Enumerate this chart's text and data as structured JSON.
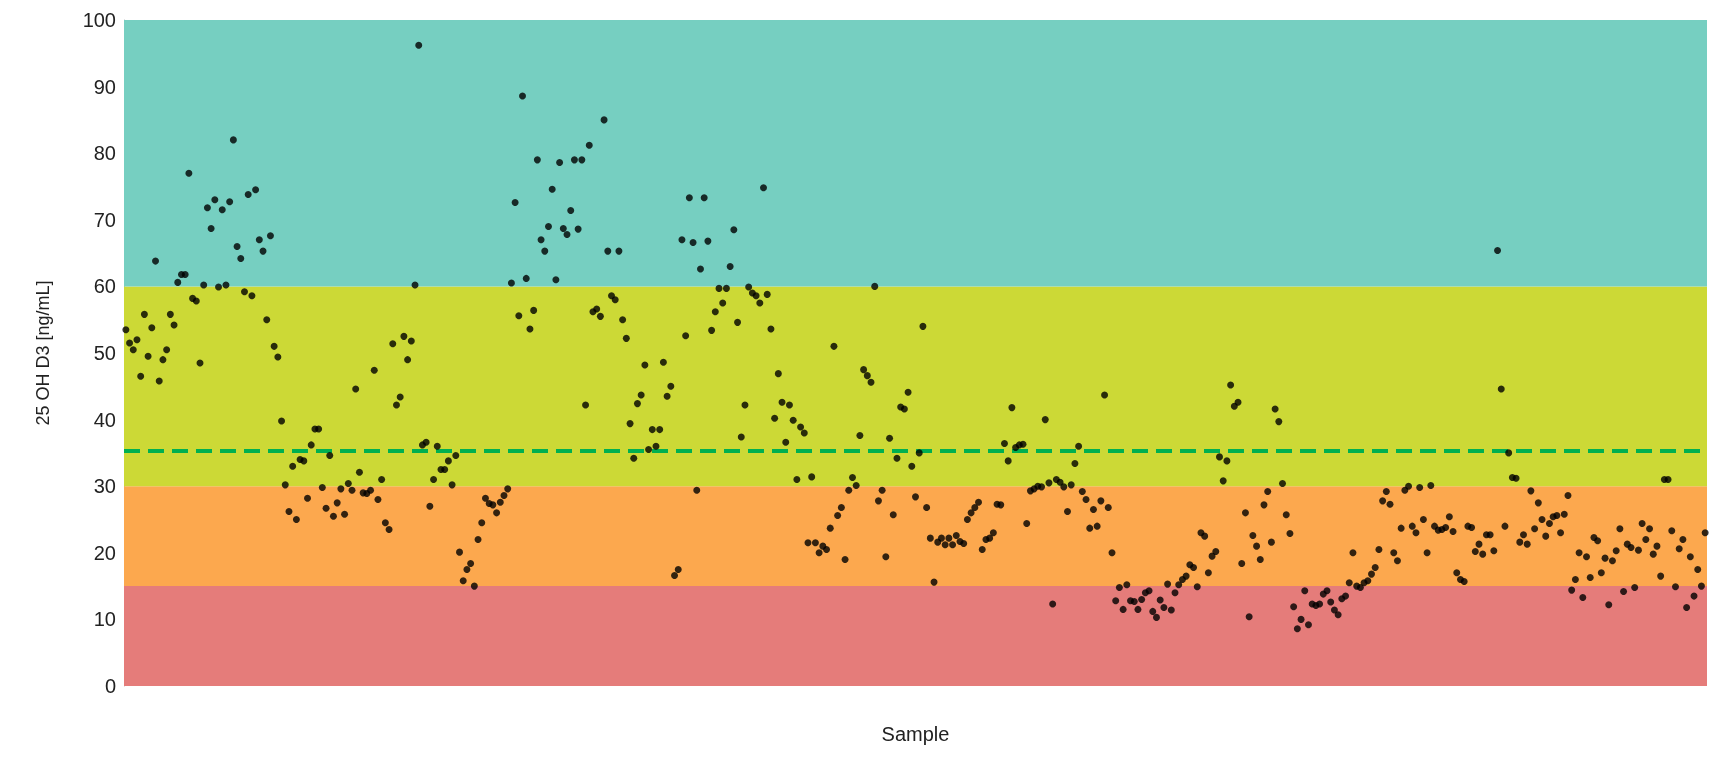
{
  "chart_data": {
    "type": "scatter",
    "xlabel": "Sample",
    "ylabel": "25 OH D3 [ng/mL]",
    "categories": [
      null,
      null,
      null,
      null,
      null,
      null,
      null,
      null,
      null,
      null,
      null,
      null,
      null,
      null,
      null,
      null,
      null,
      null,
      null,
      null,
      null,
      null,
      null,
      null,
      null,
      null,
      null,
      null,
      null,
      null,
      null,
      null,
      null,
      null,
      null,
      null,
      null,
      null,
      null,
      null,
      null,
      null,
      null,
      null,
      null,
      null,
      null,
      null,
      null,
      null,
      null,
      null,
      null,
      null,
      null,
      null,
      null,
      null,
      null,
      null,
      null,
      null,
      null,
      null,
      null,
      null,
      null,
      null,
      null,
      null,
      null,
      null,
      null,
      null,
      null,
      null,
      null,
      null,
      null,
      null,
      null,
      null,
      null,
      null,
      null,
      null,
      null,
      null,
      null,
      null,
      null,
      null,
      null,
      null,
      null,
      null,
      null,
      null,
      null,
      null,
      null,
      null,
      null,
      null,
      null,
      null,
      null,
      null,
      null,
      null,
      null,
      null,
      null,
      null,
      null,
      null,
      null,
      null,
      null,
      null,
      null,
      null,
      null,
      null,
      null,
      null,
      null,
      null,
      null,
      null,
      null,
      null,
      null,
      null,
      null,
      null,
      null,
      null,
      null,
      null,
      null,
      null,
      null,
      null,
      null,
      null,
      null,
      null,
      null,
      null,
      null,
      null,
      null,
      null,
      null,
      null,
      null,
      null,
      null,
      null,
      null,
      null,
      null,
      null,
      null,
      null,
      null,
      null,
      null,
      null,
      null,
      null,
      null,
      null,
      null,
      null,
      null,
      null,
      null,
      null,
      null,
      null,
      null,
      null,
      null,
      null,
      null,
      null,
      null,
      null,
      null,
      null,
      null,
      null,
      null,
      null,
      null,
      null,
      null,
      null,
      null,
      null,
      null,
      null,
      null,
      null,
      null,
      null,
      null,
      null,
      null,
      null,
      null,
      null,
      null,
      null,
      null,
      null,
      null,
      null,
      null,
      null,
      null,
      null,
      null,
      null,
      null,
      null,
      null,
      null,
      null,
      null,
      null,
      null,
      null,
      null,
      null,
      null,
      null,
      null,
      null,
      null,
      null,
      null,
      null,
      null,
      null,
      null,
      null,
      null,
      null,
      null,
      null,
      null,
      null,
      null,
      null,
      null,
      null,
      null,
      null,
      null,
      null,
      null,
      null,
      null,
      null,
      null,
      null,
      null,
      null,
      null,
      null,
      null,
      null,
      null,
      null,
      null,
      null,
      null,
      null,
      null,
      null,
      null,
      null,
      null,
      null,
      null,
      null,
      null,
      null,
      null,
      null,
      null,
      null,
      null,
      null,
      null,
      null,
      null,
      null,
      null,
      null,
      null,
      null,
      null,
      null,
      null,
      null,
      null,
      null,
      null,
      null,
      null,
      null,
      null,
      null,
      null,
      null,
      null,
      null,
      null,
      null,
      null,
      null,
      null,
      null,
      null,
      null,
      null,
      null,
      null,
      null,
      null,
      null,
      null,
      null,
      null,
      null,
      null,
      null,
      null,
      null,
      null,
      null,
      null,
      null,
      null,
      null,
      null,
      null,
      null,
      null,
      null,
      null,
      null,
      null,
      null,
      null,
      null,
      null,
      null,
      null,
      null,
      null,
      null,
      null,
      null,
      null,
      null,
      null,
      null,
      null,
      null,
      null,
      null,
      null,
      null,
      null,
      null,
      null,
      null,
      null,
      null,
      null,
      null,
      null,
      null,
      null,
      null,
      null,
      null,
      null,
      null,
      null,
      null,
      null,
      null,
      null,
      null,
      null,
      null,
      null,
      null,
      null,
      null,
      null,
      null,
      null,
      null,
      null,
      null,
      null,
      null,
      null,
      null,
      null,
      null,
      null,
      null,
      null,
      null,
      null,
      null,
      null,
      null,
      null
    ],
    "series": [
      {
        "color": "#000000",
        "values": [
          53.5,
          51.5,
          50.5,
          52,
          46.5,
          55.8,
          49.5,
          53.8,
          63.8,
          45.8,
          49,
          50.5,
          55.8,
          54.2,
          60.6,
          61.8,
          61.8,
          77,
          58.2,
          57.8,
          48.5,
          60.2,
          71.8,
          68.7,
          73,
          59.9,
          71.5,
          60.2,
          72.7,
          82,
          66,
          64.2,
          59.2,
          73.8,
          58.6,
          74.5,
          67,
          65.3,
          55,
          67.6,
          51,
          49.4,
          39.8,
          30.2,
          26.2,
          33,
          25,
          34,
          33.8,
          28.2,
          36.2,
          38.6,
          38.6,
          29.8,
          26.7,
          34.6,
          25.5,
          27.5,
          29.6,
          25.8,
          30.4,
          29.4,
          44.6,
          32.1,
          29,
          28.9,
          29.4,
          47.4,
          28,
          31,
          24.5,
          23.5,
          51.4,
          42.2,
          43.4,
          52.5,
          49,
          51.8,
          60.2,
          96.2,
          36.2,
          36.6,
          27,
          31,
          36,
          32.5,
          32.5,
          33.8,
          30.2,
          34.6,
          20.1,
          15.8,
          17.5,
          18.4,
          15,
          22,
          24.5,
          28.2,
          27.4,
          27.2,
          26,
          27.6,
          28.6,
          29.6,
          60.5,
          72.6,
          55.6,
          88.6,
          61.2,
          53.6,
          56.4,
          79,
          67,
          65.3,
          69,
          74.6,
          61,
          78.6,
          68.7,
          67.8,
          71.4,
          79,
          68.6,
          79,
          42.2,
          81.2,
          56.2,
          56.6,
          55.5,
          85,
          65.3,
          58.6,
          58,
          65.3,
          55,
          52.2,
          39.4,
          34.2,
          42.4,
          43.7,
          48.2,
          35.5,
          38.5,
          36,
          38.5,
          48.6,
          43.5,
          45,
          16.6,
          17.5,
          67,
          52.6,
          73.3,
          66.6,
          29.4,
          62.6,
          73.3,
          66.8,
          53.4,
          56.2,
          59.7,
          57.5,
          59.7,
          63,
          68.5,
          54.6,
          37.4,
          42.2,
          59.9,
          59,
          58.6,
          57.5,
          74.8,
          58.8,
          53.6,
          40.2,
          46.9,
          42.6,
          36.6,
          42.2,
          39.9,
          31,
          38.9,
          38,
          21.5,
          31.4,
          21.5,
          20,
          21,
          20.5,
          23.7,
          51,
          25.6,
          26.8,
          19,
          29.4,
          31.3,
          30.1,
          37.6,
          47.5,
          46.6,
          45.6,
          60,
          27.8,
          29.4,
          19.4,
          37.2,
          25.7,
          34.2,
          41.9,
          41.6,
          44.1,
          33,
          28.4,
          35,
          54,
          26.8,
          22.2,
          15.6,
          21.6,
          22.2,
          21.2,
          22.2,
          21.2,
          22.6,
          21.7,
          21.4,
          25,
          26,
          26.8,
          27.6,
          20.5,
          22,
          22.2,
          23,
          27.3,
          27.2,
          36.4,
          33.8,
          41.8,
          35.8,
          36.2,
          36.3,
          24.4,
          29.3,
          29.6,
          30,
          29.9,
          40,
          30.5,
          12.3,
          31,
          30.6,
          29.9,
          26.2,
          30.2,
          33.4,
          36,
          29.2,
          28,
          23.7,
          26.5,
          24,
          27.8,
          43.7,
          26.8,
          20,
          12.8,
          14.8,
          11.5,
          15.2,
          12.8,
          12.7,
          11.5,
          13,
          14,
          14.3,
          11.2,
          10.3,
          12.9,
          11.8,
          15.3,
          11.4,
          14,
          15.2,
          16,
          16.5,
          18.2,
          17.8,
          14.9,
          23,
          22.5,
          17,
          19.5,
          20.2,
          34.4,
          30.8,
          33.8,
          45.2,
          42,
          42.6,
          18.4,
          26,
          10.4,
          22.6,
          21,
          19,
          27.2,
          29.2,
          21.6,
          41.6,
          39.7,
          30.4,
          25.7,
          22.9,
          11.9,
          8.6,
          10,
          14.3,
          9.2,
          12.3,
          12.1,
          12.3,
          13.8,
          14.3,
          12.6,
          11.4,
          10.7,
          13.1,
          13.5,
          15.5,
          20,
          15,
          14.8,
          15.5,
          15.8,
          16.8,
          17.8,
          20.5,
          27.8,
          29.2,
          27.3,
          20,
          18.8,
          23.7,
          29.4,
          30,
          24,
          23,
          29.8,
          25,
          20,
          30.1,
          24,
          23.4,
          23.5,
          23.8,
          25.4,
          23.2,
          17,
          16,
          15.7,
          24,
          23.8,
          20.2,
          21.3,
          19.8,
          22.7,
          22.7,
          20.3,
          65.4,
          44.6,
          24,
          35,
          31.3,
          31.2,
          21.6,
          22.7,
          21.3,
          29.3,
          23.6,
          27.5,
          25,
          22.5,
          24.4,
          25.4,
          25.6,
          23,
          25.8,
          28.6,
          14.4,
          16,
          20,
          13.3,
          19.4,
          16.3,
          22.3,
          21.8,
          17,
          19.2,
          12.2,
          18.8,
          20.3,
          23.6,
          14.2,
          21.3,
          20.8,
          14.8,
          20.4,
          24.4,
          22,
          23.6,
          19.8,
          21,
          16.5,
          31,
          31,
          23.3,
          14.9,
          20.6,
          22,
          11.8,
          19.4,
          13.5,
          17.5,
          15,
          23
        ]
      }
    ],
    "ylim": [
      0,
      100
    ],
    "yticks": [
      0,
      10,
      20,
      30,
      40,
      50,
      60,
      70,
      80,
      90,
      100
    ],
    "grid": false,
    "marker": "circle",
    "bands": [
      {
        "axis": "y",
        "from": 0,
        "to": 15,
        "color": "#e57c7a"
      },
      {
        "axis": "y",
        "from": 15,
        "to": 30,
        "color": "#fca84e"
      },
      {
        "axis": "y",
        "from": 30,
        "to": 60,
        "color": "#ccd936"
      },
      {
        "axis": "y",
        "from": 60,
        "to": 100,
        "color": "#76cfc1"
      }
    ],
    "ref_lines": [
      {
        "axis": "y",
        "value": 35.3,
        "color": "#00b050",
        "line_style": "dashed"
      }
    ]
  }
}
